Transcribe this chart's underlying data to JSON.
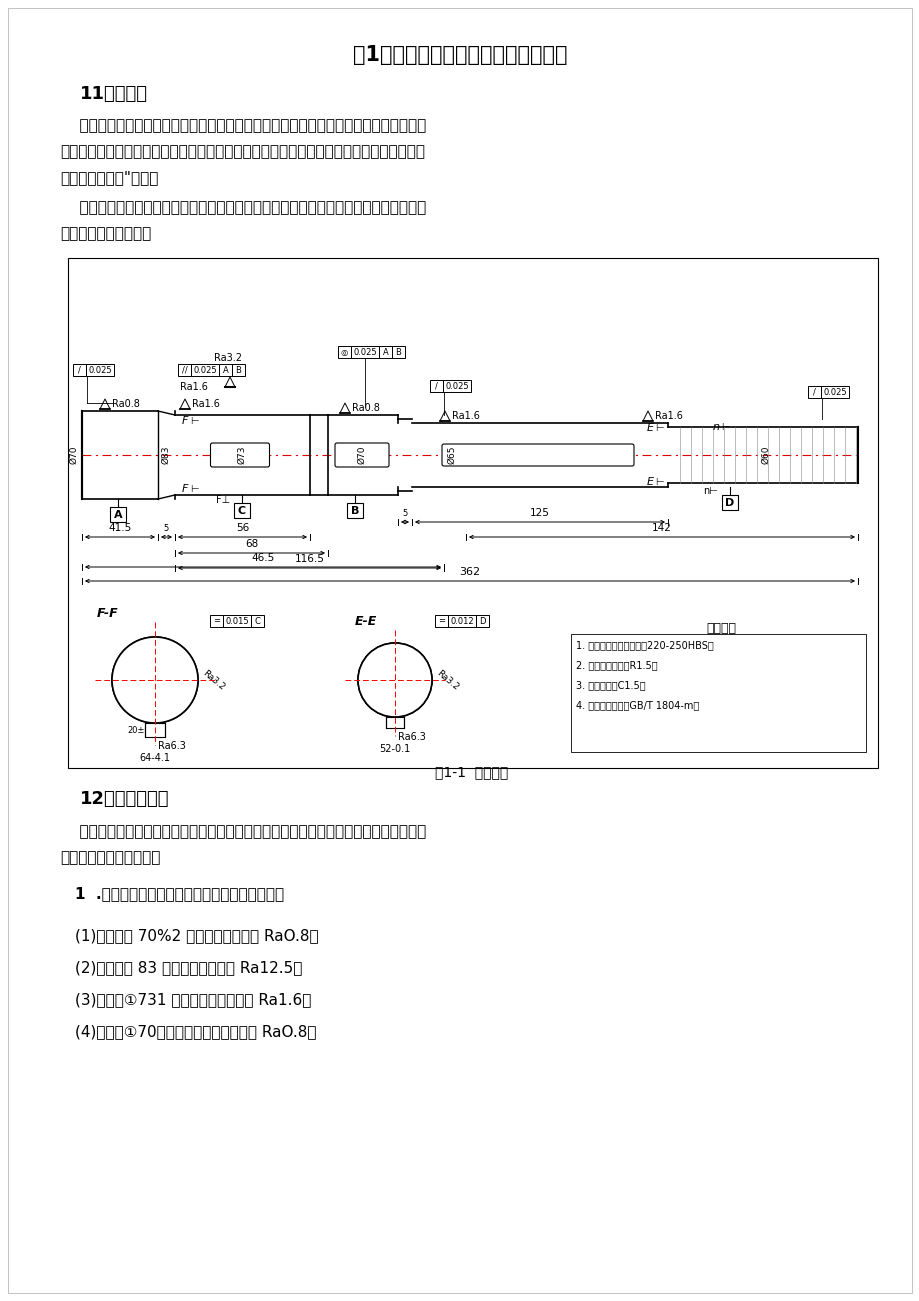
{
  "title": "第1章轴零件的工艺分析与毛坯的选择",
  "section1_heading": "11轴的用途",
  "para1_lines": [
    "    轴，是变速箱里的一根轴，轴本身与齿轮为一体，作用是将一轴和二轴连接，通过换挡",
    "杆的变换来选择与不同的齿轮啮合，使二轴能输出不同转速、转向和扭矩。因为其形状像一",
    "个塔，所以又叫\"宝塔齿"
  ],
  "para2_lines": [
    "    轴类零件主要用于支承传动零件（齿轮、带轮等）、承受载荷、传递转矩以及保证装在",
    "轴上零件的回转精度。"
  ],
  "fig_caption": "图1-1  轴零件图",
  "section2_heading": "12轴的技术要求",
  "para3_lines": [
    "    零件图样上的技术要求，既要满足设计要求，又要便于加工，而且齐全和合理。其技术",
    "要求包括下列几个方面："
  ],
  "item1": "1  .加工表面的尺寸精度、形状精度和表面质量；",
  "item2": "(1)轴左侧人 70%2 外圆，表面粗糙度 RaO.8；",
  "item3": "(2)轴左侧中 83 外圆，表面粗糙度 Ra12.5；",
  "item4": "(3)轴左侧①731 喘外圆，表面粗糙度 Ra1.6；",
  "item5": "(4)轴右侧①70：螺；外圆，表面粗糙度 RaO.8；",
  "tech_items": [
    "1. 热处理调质后表面硬度220-250HBS；",
    "2. 未注圆角半径为R1.5；",
    "3. 未注倒角为C1.5；",
    "4. 未注尺寸公差按GB/T 1804-m。"
  ],
  "bg_color": "#ffffff",
  "text_color": "#000000",
  "font_size_title": 15,
  "font_size_heading": 13,
  "font_size_body": 11
}
